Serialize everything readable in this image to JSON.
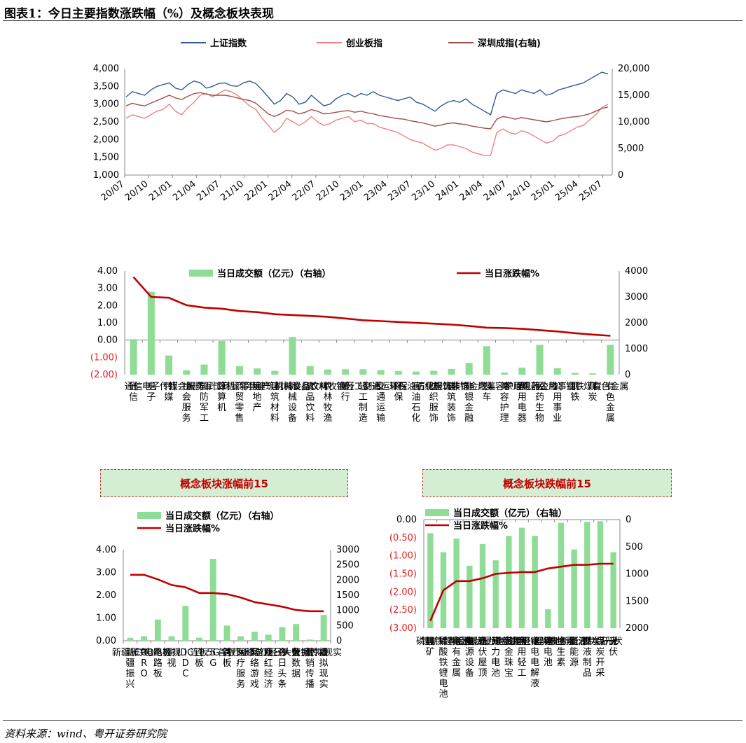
{
  "figure": {
    "title": "图表1：今日主要指数涨跌幅（%）及概念板块表现",
    "source": "资料来源：wind、粤开证券研究院"
  },
  "colors": {
    "shanghai": "#2e5b9a",
    "chinext": "#f08080",
    "shenzhen": "#a0504b",
    "bar": "#8fdc97",
    "line": "#c00000",
    "neg_tick": "#e02020"
  },
  "chart_data": [
    {
      "type": "line",
      "legend": [
        "上证指数",
        "创业板指",
        "深圳成指(右轴)"
      ],
      "x_ticks": [
        "20/07",
        "20/10",
        "21/01",
        "21/04",
        "21/07",
        "21/10",
        "22/01",
        "22/04",
        "22/07",
        "22/10",
        "23/01",
        "23/04",
        "23/07",
        "23/10",
        "24/01",
        "24/04",
        "24/07",
        "24/10",
        "25/01",
        "25/04",
        "25/07"
      ],
      "y_left_ticks": [
        "1,000",
        "1,500",
        "2,000",
        "2,500",
        "3,000",
        "3,500",
        "4,000"
      ],
      "y_right_ticks": [
        "0",
        "5,000",
        "10,000",
        "15,000",
        "20,000"
      ],
      "ylim_left": [
        1000,
        4000
      ],
      "ylim_right": [
        0,
        20000
      ],
      "series": [
        {
          "name": "上证指数",
          "axis": "left",
          "values": [
            3200,
            3350,
            3300,
            3250,
            3400,
            3500,
            3550,
            3600,
            3450,
            3400,
            3550,
            3650,
            3600,
            3450,
            3500,
            3580,
            3600,
            3520,
            3500,
            3600,
            3650,
            3580,
            3400,
            3200,
            3000,
            3100,
            3300,
            3200,
            3000,
            3050,
            3250,
            3100,
            2950,
            3000,
            3150,
            3250,
            3300,
            3200,
            3300,
            3250,
            3350,
            3250,
            3200,
            3150,
            3100,
            3150,
            3200,
            3050,
            3000,
            2900,
            2800,
            2950,
            3050,
            3100,
            3050,
            3150,
            3000,
            2900,
            2800,
            2700,
            3300,
            3400,
            3350,
            3300,
            3400,
            3350,
            3300,
            3400,
            3250,
            3300,
            3400,
            3450,
            3500,
            3550,
            3600,
            3700,
            3800,
            3900,
            3850
          ]
        },
        {
          "name": "创业板指",
          "axis": "left",
          "values": [
            2600,
            2700,
            2650,
            2600,
            2700,
            2800,
            2850,
            3000,
            2800,
            2700,
            2900,
            3050,
            3250,
            3300,
            3200,
            3300,
            3400,
            3350,
            3250,
            3100,
            2950,
            2850,
            2600,
            2400,
            2200,
            2350,
            2600,
            2500,
            2400,
            2500,
            2650,
            2500,
            2400,
            2450,
            2550,
            2600,
            2650,
            2500,
            2550,
            2450,
            2450,
            2350,
            2300,
            2250,
            2200,
            2100,
            2000,
            1950,
            1900,
            1800,
            1700,
            1750,
            1850,
            1850,
            1800,
            1750,
            1650,
            1600,
            1550,
            1550,
            2200,
            2300,
            2200,
            2150,
            2250,
            2200,
            2100,
            2000,
            1900,
            1950,
            2100,
            2150,
            2250,
            2350,
            2400,
            2550,
            2700,
            2900,
            3000
          ]
        },
        {
          "name": "深圳成指(右轴)",
          "axis": "right",
          "values": [
            13000,
            13500,
            13200,
            13000,
            13500,
            14000,
            14500,
            15000,
            14500,
            14200,
            14800,
            15300,
            15500,
            15200,
            15000,
            15000,
            15000,
            14800,
            14500,
            14200,
            14000,
            13500,
            12500,
            11500,
            11000,
            11500,
            12200,
            12000,
            11500,
            11800,
            12300,
            12000,
            11500,
            11600,
            11800,
            12000,
            12100,
            11800,
            12000,
            11700,
            11500,
            11200,
            11000,
            10800,
            10600,
            10500,
            10200,
            10000,
            9800,
            9500,
            9200,
            9400,
            9700,
            9800,
            9600,
            9500,
            9200,
            9000,
            8800,
            8700,
            10500,
            11000,
            10800,
            10500,
            10800,
            10600,
            10400,
            10200,
            10000,
            10200,
            10500,
            10700,
            10900,
            11000,
            11200,
            11500,
            12000,
            12500,
            12800
          ]
        }
      ]
    },
    {
      "type": "bar",
      "legend": [
        "当日成交额（亿元）（右轴）",
        "当日涨跌幅%"
      ],
      "categories": [
        "通信",
        "电子",
        "传媒",
        "社会服务",
        "国防军工",
        "计算机",
        "商贸零售",
        "房地产",
        "建筑材料",
        "机械设备",
        "食品饮料",
        "农林牧渔",
        "银行",
        "轻工制造",
        "交通运输",
        "环保",
        "石油石化",
        "纺织服饰",
        "建筑装饰",
        "非银金融",
        "汽车",
        "美容护理",
        "家用电器",
        "医药生物",
        "公用事业",
        "钢铁",
        "煤炭",
        "有色金属"
      ],
      "y_left_ticks": [
        "4.00",
        "3.00",
        "2.00",
        "1.00",
        "0.00",
        "(1.00)",
        "(2.00)"
      ],
      "y_right_ticks": [
        "4000",
        "3000",
        "2000",
        "1000",
        "0"
      ],
      "ylim_left": [
        -2,
        4
      ],
      "ylim_right": [
        0,
        4000
      ],
      "series": [
        {
          "name": "当日成交额（亿元）（右轴）",
          "axis": "right",
          "values": [
            1370,
            3200,
            740,
            170,
            390,
            1300,
            330,
            240,
            150,
            1450,
            330,
            200,
            210,
            210,
            180,
            140,
            120,
            150,
            220,
            450,
            1100,
            80,
            270,
            1150,
            250,
            70,
            50,
            1150
          ]
        },
        {
          "name": "当日涨跌幅%",
          "axis": "left",
          "values": [
            3.65,
            2.5,
            2.45,
            2.02,
            1.88,
            1.82,
            1.68,
            1.62,
            1.5,
            1.45,
            1.4,
            1.35,
            1.25,
            1.15,
            1.1,
            1.05,
            1.0,
            0.95,
            0.9,
            0.82,
            0.72,
            0.7,
            0.65,
            0.58,
            0.5,
            0.4,
            0.32,
            0.25
          ]
        }
      ]
    },
    {
      "type": "bar",
      "title": "概念板块涨幅前15",
      "legend": [
        "当日成交额（亿元）（右轴）",
        "当日涨跌幅%"
      ],
      "categories": [
        "新疆振兴",
        "CRO",
        "电路板",
        "影视",
        "IDC",
        "连板",
        "5G",
        "首板",
        "医疗服务",
        "网络游戏",
        "网红经济",
        "今日头条",
        "大数据",
        "营销传播",
        "虚拟现实"
      ],
      "y_left_ticks": [
        "4.00",
        "3.00",
        "2.00",
        "1.00",
        "0.00"
      ],
      "y_right_ticks": [
        "3000",
        "2500",
        "2000",
        "1500",
        "1000",
        "500",
        "0"
      ],
      "ylim_left": [
        0,
        4
      ],
      "ylim_right": [
        0,
        3000
      ],
      "series": [
        {
          "name": "当日成交额（亿元）（右轴）",
          "axis": "right",
          "values": [
            100,
            150,
            700,
            150,
            1150,
            100,
            2700,
            500,
            150,
            300,
            200,
            450,
            550,
            40,
            850
          ]
        },
        {
          "name": "当日涨跌幅%",
          "axis": "left",
          "values": [
            2.9,
            2.9,
            2.7,
            2.45,
            2.35,
            2.1,
            2.1,
            2.05,
            1.9,
            1.7,
            1.6,
            1.5,
            1.35,
            1.3,
            1.3
          ]
        }
      ]
    },
    {
      "type": "bar",
      "title": "概念板块跌幅前15",
      "legend": [
        "当日成交额（亿元）（右轴）",
        "当日涨跌幅%"
      ],
      "categories": [
        "锂矿",
        "磷酸铁锂电池",
        "稀有金属",
        "电源设备",
        "光伏屋顶",
        "动力电池",
        "黄金珠宝",
        "家用轻工",
        "锂电电解液",
        "锂电池",
        "维生素",
        "新能源",
        "血液制品",
        "煤炭开采",
        "光伏"
      ],
      "y_left_ticks": [
        "0.00",
        "(0.50)",
        "(1.00)",
        "(1.50)",
        "(2.00)",
        "(2.50)",
        "(3.00)"
      ],
      "y_right_ticks": [
        "0",
        "500",
        "1000",
        "1500",
        "2000"
      ],
      "ylim_left": [
        -3,
        0
      ],
      "ylim_right": [
        2000,
        0
      ],
      "series": [
        {
          "name": "当日成交额（亿元）（右轴）",
          "axis": "right",
          "values": [
            250,
            600,
            350,
            850,
            450,
            750,
            300,
            150,
            300,
            1650,
            60,
            550,
            40,
            30,
            600
          ]
        },
        {
          "name": "当日涨跌幅%",
          "axis": "left",
          "values": [
            -2.8,
            -1.95,
            -1.7,
            -1.7,
            -1.62,
            -1.5,
            -1.47,
            -1.45,
            -1.45,
            -1.35,
            -1.3,
            -1.25,
            -1.25,
            -1.22,
            -1.22
          ]
        }
      ]
    }
  ]
}
